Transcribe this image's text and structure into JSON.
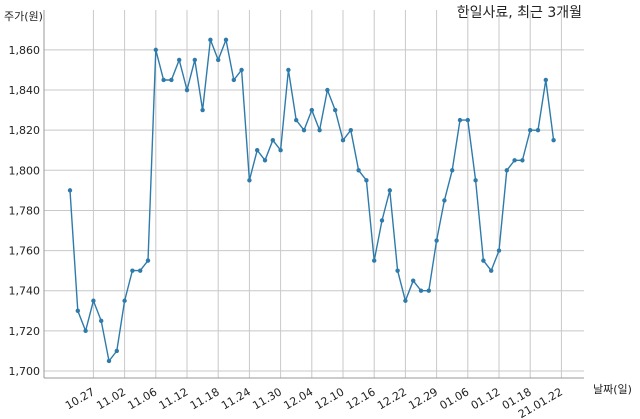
{
  "chart_data": {
    "type": "line",
    "title": "한일사료, 최근 3개월",
    "ylabel": "주가(원)",
    "xlabel": "날짜(일)",
    "ylim": [
      1700,
      1870
    ],
    "yticks": [
      1700,
      1720,
      1740,
      1760,
      1780,
      1800,
      1820,
      1840,
      1860
    ],
    "x_tick_labels": [
      "10.27",
      "11.02",
      "11.06",
      "11.12",
      "11.18",
      "11.24",
      "11.30",
      "12.04",
      "12.10",
      "12.16",
      "12.22",
      "12.29",
      "01.06",
      "01.12",
      "01.18",
      "21.01.22"
    ],
    "x_tick_index": [
      3,
      7,
      11,
      15,
      19,
      23,
      27,
      31,
      35,
      39,
      43,
      47,
      51,
      55,
      59,
      63
    ],
    "grid": true,
    "line_color": "#2e7bab",
    "series": [
      {
        "values": [
          1790,
          1730,
          1720,
          1735,
          1725,
          1705,
          1710,
          1735,
          1750,
          1750,
          1755,
          1860,
          1845,
          1845,
          1855,
          1840,
          1855,
          1830,
          1865,
          1855,
          1865,
          1845,
          1850,
          1795,
          1810,
          1805,
          1815,
          1810,
          1850,
          1825,
          1820,
          1830,
          1820,
          1840,
          1830,
          1815,
          1820,
          1800,
          1795,
          1755,
          1775,
          1790,
          1750,
          1735,
          1745,
          1740,
          1740,
          1765,
          1785,
          1800,
          1825,
          1825,
          1795,
          1755,
          1750,
          1760,
          1800,
          1805,
          1805,
          1820,
          1820,
          1845,
          1815
        ]
      }
    ]
  }
}
